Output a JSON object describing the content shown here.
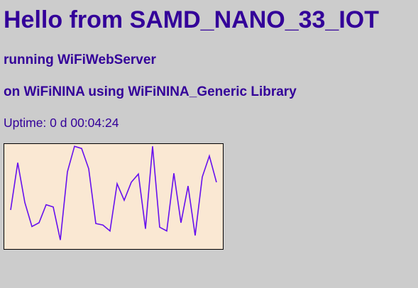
{
  "page": {
    "title": "Hello from SAMD_NANO_33_IOT",
    "subtitle1": "running WiFiWebServer",
    "subtitle2": "on WiFiNINA using WiFiNINA_Generic Library",
    "uptime": "Uptime: 0 d 00:04:24"
  },
  "colors": {
    "background": "#cccccc",
    "text": "#330099",
    "chart_fill": "#fae8d3",
    "chart_line": "#6610ee",
    "chart_border": "#000000"
  },
  "chart_data": {
    "type": "line",
    "title": "",
    "xlabel": "",
    "ylabel": "",
    "ylim": [
      0,
      140
    ],
    "grid": false,
    "series": [
      {
        "values": [
          52,
          115,
          62,
          30,
          35,
          59,
          56,
          12,
          103,
          137,
          134,
          107,
          34,
          32,
          24,
          87,
          65,
          89,
          100,
          27,
          137,
          29,
          24,
          101,
          35,
          84,
          18,
          96,
          124,
          89
        ]
      }
    ]
  }
}
